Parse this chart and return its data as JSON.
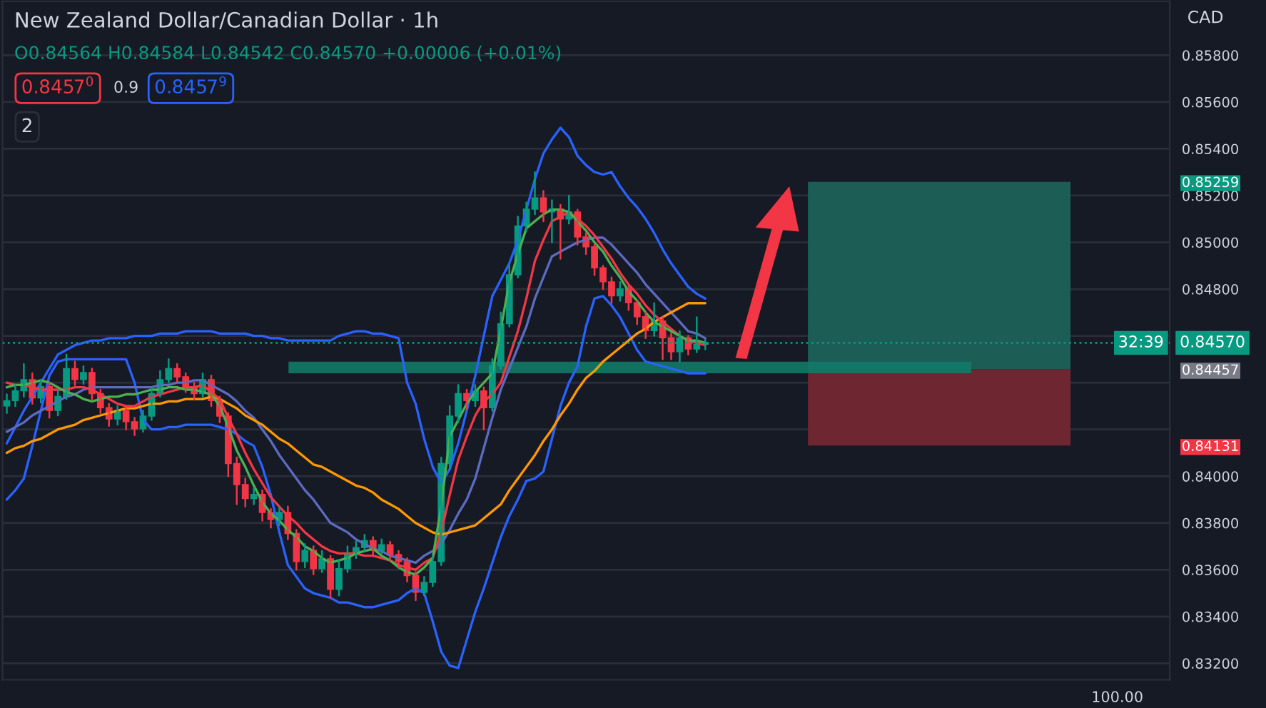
{
  "chart_data": {
    "type": "candlestick",
    "title": "New Zealand Dollar/Canadian Dollar · 1h",
    "subtitle": "O0.84564 H0.84584 L0.84542 C0.84570 +0.00006 (+0.01%)",
    "annotations": [
      "0.8457$^{0}$",
      "0.9",
      "0.8457$^{9}$",
      "2",
      "CAD",
      "32:39",
      "100.00"
    ],
    "categories": [
      null,
      null,
      null,
      null,
      null,
      null,
      null,
      null,
      null,
      null,
      null,
      null,
      null,
      null,
      null,
      null,
      null,
      null,
      null,
      null,
      null,
      null,
      null,
      null,
      null,
      null,
      null,
      null,
      null,
      null,
      null,
      null,
      null,
      null,
      null,
      null,
      null,
      null,
      null,
      null,
      null,
      null,
      null,
      null,
      null,
      null,
      null,
      null,
      null,
      null,
      null,
      null,
      null,
      null,
      null,
      null,
      null,
      null,
      null,
      null,
      null,
      null,
      null,
      null,
      null,
      null,
      null,
      null,
      null,
      null,
      null,
      null,
      null,
      null,
      null,
      null,
      null,
      null,
      null,
      null,
      null,
      null,
      null
    ],
    "ohlc": [
      [
        0.843,
        0.8435,
        0.8427,
        0.84323
      ],
      [
        0.84323,
        0.8439,
        0.843,
        0.84365
      ],
      [
        0.84365,
        0.8448,
        0.8434,
        0.84413
      ],
      [
        0.84413,
        0.8444,
        0.8431,
        0.84335
      ],
      [
        0.84335,
        0.8441,
        0.84315,
        0.84383
      ],
      [
        0.84383,
        0.844,
        0.8425,
        0.84281
      ],
      [
        0.84281,
        0.8437,
        0.8426,
        0.84341
      ],
      [
        0.84341,
        0.8452,
        0.8433,
        0.8446
      ],
      [
        0.8446,
        0.8449,
        0.8439,
        0.84413
      ],
      [
        0.84413,
        0.8447,
        0.84395,
        0.84443
      ],
      [
        0.84443,
        0.8446,
        0.8433,
        0.84353
      ],
      [
        0.84353,
        0.8437,
        0.8427,
        0.84293
      ],
      [
        0.84293,
        0.8431,
        0.84215,
        0.84245
      ],
      [
        0.84245,
        0.843,
        0.8422,
        0.84281
      ],
      [
        0.84281,
        0.84295,
        0.842,
        0.84233
      ],
      [
        0.84233,
        0.8425,
        0.84175,
        0.84203
      ],
      [
        0.84203,
        0.8428,
        0.8419,
        0.84257
      ],
      [
        0.84257,
        0.8438,
        0.8424,
        0.84353
      ],
      [
        0.84353,
        0.8445,
        0.8434,
        0.84413
      ],
      [
        0.84413,
        0.845,
        0.844,
        0.8446
      ],
      [
        0.8446,
        0.8448,
        0.84405,
        0.84425
      ],
      [
        0.84425,
        0.8444,
        0.8436,
        0.84383
      ],
      [
        0.84383,
        0.844,
        0.8433,
        0.84353
      ],
      [
        0.84353,
        0.8444,
        0.8434,
        0.84413
      ],
      [
        0.84413,
        0.8443,
        0.843,
        0.84323
      ],
      [
        0.84323,
        0.8434,
        0.8423,
        0.84257
      ],
      [
        0.84257,
        0.8427,
        0.84,
        0.84054
      ],
      [
        0.84054,
        0.8408,
        0.8388,
        0.83964
      ],
      [
        0.83964,
        0.8399,
        0.8387,
        0.83904
      ],
      [
        0.83904,
        0.8395,
        0.8388,
        0.83922
      ],
      [
        0.83922,
        0.8394,
        0.8381,
        0.83845
      ],
      [
        0.83845,
        0.8386,
        0.8378,
        0.83815
      ],
      [
        0.83815,
        0.8387,
        0.8379,
        0.83845
      ],
      [
        0.83845,
        0.8387,
        0.8373,
        0.83755
      ],
      [
        0.83755,
        0.8377,
        0.836,
        0.83635
      ],
      [
        0.83635,
        0.8371,
        0.8361,
        0.83683
      ],
      [
        0.83683,
        0.837,
        0.8358,
        0.83605
      ],
      [
        0.83605,
        0.8368,
        0.8359,
        0.83647
      ],
      [
        0.83647,
        0.8366,
        0.8348,
        0.83516
      ],
      [
        0.83516,
        0.8364,
        0.8349,
        0.83605
      ],
      [
        0.83605,
        0.837,
        0.8359,
        0.83665
      ],
      [
        0.83665,
        0.8372,
        0.8365,
        0.83695
      ],
      [
        0.83695,
        0.8375,
        0.8368,
        0.83725
      ],
      [
        0.83725,
        0.8374,
        0.8366,
        0.83683
      ],
      [
        0.83683,
        0.8373,
        0.8367,
        0.83707
      ],
      [
        0.83707,
        0.8372,
        0.8364,
        0.83665
      ],
      [
        0.83665,
        0.8368,
        0.8361,
        0.83635
      ],
      [
        0.83635,
        0.8365,
        0.8355,
        0.83575
      ],
      [
        0.83575,
        0.8359,
        0.8347,
        0.83504
      ],
      [
        0.83504,
        0.8357,
        0.8349,
        0.83546
      ],
      [
        0.83546,
        0.8366,
        0.8353,
        0.83635
      ],
      [
        0.83635,
        0.8408,
        0.8362,
        0.84054
      ],
      [
        0.84054,
        0.843,
        0.8403,
        0.84257
      ],
      [
        0.84257,
        0.8439,
        0.8423,
        0.84353
      ],
      [
        0.84353,
        0.8437,
        0.8429,
        0.84323
      ],
      [
        0.84323,
        0.8439,
        0.843,
        0.84365
      ],
      [
        0.84365,
        0.8438,
        0.842,
        0.84293
      ],
      [
        0.84293,
        0.845,
        0.8428,
        0.84472
      ],
      [
        0.84472,
        0.847,
        0.8446,
        0.84652
      ],
      [
        0.84652,
        0.849,
        0.8464,
        0.84861
      ],
      [
        0.84861,
        0.8511,
        0.8485,
        0.8507
      ],
      [
        0.8507,
        0.8517,
        0.8505,
        0.85142
      ],
      [
        0.85142,
        0.853,
        0.8512,
        0.8519
      ],
      [
        0.8519,
        0.8522,
        0.8509,
        0.8513
      ],
      [
        0.8513,
        0.8518,
        0.85,
        0.85142
      ],
      [
        0.85142,
        0.8516,
        0.8493,
        0.851
      ],
      [
        0.851,
        0.852,
        0.8508,
        0.8513
      ],
      [
        0.8513,
        0.8514,
        0.8499,
        0.85023
      ],
      [
        0.85023,
        0.8504,
        0.8495,
        0.84981
      ],
      [
        0.84981,
        0.8499,
        0.8486,
        0.84891
      ],
      [
        0.84891,
        0.849,
        0.848,
        0.84831
      ],
      [
        0.84831,
        0.8485,
        0.8474,
        0.84771
      ],
      [
        0.84771,
        0.8483,
        0.8475,
        0.84801
      ],
      [
        0.84801,
        0.8481,
        0.8471,
        0.84742
      ],
      [
        0.84742,
        0.8475,
        0.8465,
        0.84682
      ],
      [
        0.84682,
        0.847,
        0.8459,
        0.84622
      ],
      [
        0.84622,
        0.8474,
        0.846,
        0.84664
      ],
      [
        0.84664,
        0.8468,
        0.845,
        0.84592
      ],
      [
        0.84592,
        0.8461,
        0.845,
        0.84532
      ],
      [
        0.84532,
        0.8462,
        0.8449,
        0.84592
      ],
      [
        0.84592,
        0.846,
        0.8452,
        0.84544
      ],
      [
        0.84544,
        0.8468,
        0.8453,
        0.84564
      ],
      [
        0.84564,
        0.84584,
        0.84542,
        0.8457
      ]
    ],
    "colors": [
      "#089981",
      "#089981",
      "#089981",
      "#f23645",
      "#089981",
      "#f23645",
      "#089981",
      "#089981",
      "#f23645",
      "#089981",
      "#f23645",
      "#f23645",
      "#f23645",
      "#089981",
      "#f23645",
      "#f23645",
      "#089981",
      "#089981",
      "#089981",
      "#089981",
      "#f23645",
      "#f23645",
      "#f23645",
      "#089981",
      "#f23645",
      "#f23645",
      "#f23645",
      "#f23645",
      "#f23645",
      "#089981",
      "#f23645",
      "#f23645",
      "#089981",
      "#f23645",
      "#f23645",
      "#089981",
      "#f23645",
      "#089981",
      "#f23645",
      "#089981",
      "#089981",
      "#089981",
      "#089981",
      "#f23645",
      "#089981",
      "#f23645",
      "#f23645",
      "#f23645",
      "#f23645",
      "#089981",
      "#089981",
      "#089981",
      "#089981",
      "#089981",
      "#f23645",
      "#089981",
      "#f23645",
      "#089981",
      "#089981",
      "#089981",
      "#089981",
      "#089981",
      "#089981",
      "#f23645",
      "#089981",
      "#f23645",
      "#089981",
      "#f23645",
      "#f23645",
      "#f23645",
      "#f23645",
      "#f23645",
      "#089981",
      "#f23645",
      "#f23645",
      "#f23645",
      "#089981",
      "#f23645",
      "#f23645",
      "#089981",
      "#f23645",
      "#089981",
      "#089981"
    ],
    "series": [
      {
        "type": "line",
        "color": "#2962ff",
        "values": [
          0.8414,
          0.8421,
          0.8428,
          0.8434,
          0.844,
          0.8446,
          0.8452,
          0.8454,
          0.8456,
          0.8457,
          0.8458,
          0.8458,
          0.8459,
          0.8459,
          0.8459,
          0.846,
          0.846,
          0.846,
          0.8461,
          0.8461,
          0.8461,
          0.8462,
          0.8462,
          0.8462,
          0.8462,
          0.8461,
          0.8461,
          0.8461,
          0.8461,
          0.846,
          0.846,
          0.8459,
          0.8459,
          0.8458,
          0.8458,
          0.8458,
          0.8458,
          0.8458,
          0.8458,
          0.846,
          0.8461,
          0.8462,
          0.8462,
          0.8461,
          0.8461,
          0.846,
          0.8459,
          0.844,
          0.8431,
          0.8416,
          0.8404,
          0.8397,
          0.8403,
          0.8414,
          0.8428,
          0.8443,
          0.846,
          0.8477,
          0.8484,
          0.8491,
          0.8501,
          0.8514,
          0.8527,
          0.8538,
          0.8544,
          0.8549,
          0.8545,
          0.8537,
          0.8533,
          0.853,
          0.8529,
          0.853,
          0.8524,
          0.8519,
          0.8515,
          0.851,
          0.8504,
          0.8497,
          0.8491,
          0.8486,
          0.8481,
          0.8478,
          0.8476
        ]
      },
      {
        "type": "line",
        "color": "#2962ff",
        "values": [
          0.839,
          0.8394,
          0.8399,
          0.8413,
          0.8428,
          0.8443,
          0.8449,
          0.845,
          0.845,
          0.845,
          0.845,
          0.845,
          0.845,
          0.845,
          0.845,
          0.844,
          0.8424,
          0.842,
          0.842,
          0.8421,
          0.8421,
          0.8422,
          0.8422,
          0.8422,
          0.8422,
          0.8421,
          0.842,
          0.8418,
          0.8415,
          0.8413,
          0.8404,
          0.8392,
          0.8376,
          0.8362,
          0.8357,
          0.8352,
          0.835,
          0.8349,
          0.8348,
          0.8346,
          0.8346,
          0.8345,
          0.8344,
          0.8344,
          0.8345,
          0.8346,
          0.8347,
          0.835,
          0.8352,
          0.835,
          0.8338,
          0.8325,
          0.8319,
          0.8318,
          0.833,
          0.8342,
          0.8352,
          0.8363,
          0.8374,
          0.8383,
          0.839,
          0.8398,
          0.8399,
          0.8402,
          0.8416,
          0.843,
          0.844,
          0.8447,
          0.8464,
          0.8476,
          0.8477,
          0.8473,
          0.8468,
          0.8461,
          0.8454,
          0.8449,
          0.8448,
          0.8447,
          0.8446,
          0.8445,
          0.8444,
          0.8444,
          0.8444
        ]
      },
      {
        "type": "line",
        "color": "#5c6bc0",
        "values": [
          0.8419,
          0.8421,
          0.8423,
          0.8426,
          0.8428,
          0.843,
          0.8432,
          0.8434,
          0.8435,
          0.8437,
          0.8438,
          0.8438,
          0.8438,
          0.8438,
          0.8438,
          0.8438,
          0.8438,
          0.8438,
          0.8439,
          0.8439,
          0.844,
          0.844,
          0.8441,
          0.8441,
          0.8439,
          0.8437,
          0.8435,
          0.8432,
          0.8428,
          0.8425,
          0.842,
          0.8415,
          0.8409,
          0.8404,
          0.8399,
          0.8394,
          0.839,
          0.8385,
          0.838,
          0.8378,
          0.8376,
          0.8373,
          0.8371,
          0.8369,
          0.8368,
          0.8366,
          0.8365,
          0.8364,
          0.8363,
          0.8366,
          0.8368,
          0.8371,
          0.8377,
          0.8384,
          0.839,
          0.8399,
          0.8412,
          0.8425,
          0.8437,
          0.8446,
          0.8455,
          0.8464,
          0.8476,
          0.8485,
          0.8494,
          0.8496,
          0.8498,
          0.85,
          0.8501,
          0.8502,
          0.8502,
          0.8499,
          0.8495,
          0.8491,
          0.8487,
          0.8482,
          0.8478,
          0.8474,
          0.847,
          0.8466,
          0.8462,
          0.8461,
          0.8459
        ]
      },
      {
        "type": "line",
        "color": "#ff9800",
        "values": [
          0.841,
          0.8412,
          0.8413,
          0.8415,
          0.8416,
          0.8418,
          0.842,
          0.8421,
          0.8422,
          0.8424,
          0.8425,
          0.8426,
          0.8427,
          0.8428,
          0.8429,
          0.8429,
          0.843,
          0.8431,
          0.8431,
          0.8432,
          0.8432,
          0.8433,
          0.8433,
          0.8433,
          0.8434,
          0.8433,
          0.8431,
          0.8429,
          0.8426,
          0.8424,
          0.8422,
          0.8419,
          0.8416,
          0.8414,
          0.8411,
          0.8408,
          0.8405,
          0.8404,
          0.8402,
          0.84,
          0.8398,
          0.8396,
          0.8395,
          0.8393,
          0.839,
          0.8388,
          0.8386,
          0.8383,
          0.838,
          0.8378,
          0.8376,
          0.8375,
          0.8376,
          0.8377,
          0.8378,
          0.8379,
          0.8382,
          0.8385,
          0.8388,
          0.8394,
          0.8399,
          0.8404,
          0.8409,
          0.8415,
          0.842,
          0.8426,
          0.8431,
          0.8437,
          0.8442,
          0.8445,
          0.8449,
          0.8452,
          0.8455,
          0.8458,
          0.8461,
          0.8463,
          0.8466,
          0.8468,
          0.847,
          0.8472,
          0.8474,
          0.8474,
          0.8474
        ]
      },
      {
        "type": "line",
        "color": "#f23645",
        "values": [
          0.844,
          0.8439,
          0.8439,
          0.8438,
          0.8437,
          0.8437,
          0.8437,
          0.8437,
          0.8438,
          0.8438,
          0.8437,
          0.8435,
          0.8433,
          0.8431,
          0.843,
          0.843,
          0.8432,
          0.8434,
          0.8435,
          0.8436,
          0.8437,
          0.8438,
          0.8438,
          0.8439,
          0.8436,
          0.8433,
          0.8425,
          0.8418,
          0.841,
          0.8403,
          0.8397,
          0.8391,
          0.8387,
          0.8383,
          0.838,
          0.8376,
          0.8373,
          0.837,
          0.8368,
          0.8367,
          0.8367,
          0.8367,
          0.8366,
          0.8366,
          0.8365,
          0.8364,
          0.8362,
          0.8361,
          0.836,
          0.8363,
          0.8365,
          0.8376,
          0.8392,
          0.8407,
          0.8417,
          0.8426,
          0.8432,
          0.8435,
          0.844,
          0.8451,
          0.8462,
          0.8476,
          0.8492,
          0.8501,
          0.8509,
          0.8511,
          0.8513,
          0.851,
          0.8507,
          0.8503,
          0.8498,
          0.8493,
          0.8487,
          0.8482,
          0.8478,
          0.8473,
          0.8469,
          0.8466,
          0.8463,
          0.846,
          0.8458,
          0.8457,
          0.8456
        ]
      },
      {
        "type": "line",
        "color": "#4caf50",
        "values": [
          0.8438,
          0.8439,
          0.8439,
          0.844,
          0.8441,
          0.844,
          0.8438,
          0.8436,
          0.8435,
          0.8433,
          0.8432,
          0.8433,
          0.8434,
          0.8434,
          0.8435,
          0.8435,
          0.8436,
          0.8437,
          0.8437,
          0.8438,
          0.8438,
          0.8437,
          0.8437,
          0.8436,
          0.8435,
          0.843,
          0.8421,
          0.8411,
          0.8404,
          0.8396,
          0.8389,
          0.8384,
          0.8381,
          0.8377,
          0.8374,
          0.837,
          0.8368,
          0.8365,
          0.8363,
          0.8364,
          0.8365,
          0.8367,
          0.8368,
          0.8369,
          0.8366,
          0.8364,
          0.8361,
          0.8359,
          0.8358,
          0.8361,
          0.8365,
          0.8387,
          0.8417,
          0.8424,
          0.8431,
          0.8436,
          0.844,
          0.8444,
          0.8463,
          0.8483,
          0.8495,
          0.8506,
          0.8509,
          0.8512,
          0.8514,
          0.8514,
          0.8513,
          0.8509,
          0.8505,
          0.85,
          0.8496,
          0.849,
          0.8485,
          0.8479,
          0.8475,
          0.847,
          0.8466,
          0.8464,
          0.8462,
          0.846,
          0.8458,
          0.8458,
          0.8457
        ]
      }
    ],
    "bands": [
      {
        "axis": "y",
        "from": 0.8444,
        "to": 0.8449,
        "color": "#127a68"
      }
    ],
    "ref_lines": [
      {
        "axis": "y",
        "value": 0.8457,
        "label": "0.84570",
        "color": "#089981",
        "line_style": "dotted"
      }
    ],
    "ylim": [
      0.8313,
      0.8603
    ],
    "yticks": [
      {
        "value": 0.832,
        "label": "0.83200"
      },
      {
        "value": 0.834,
        "label": "0.83400"
      },
      {
        "value": 0.836,
        "label": "0.83600"
      },
      {
        "value": 0.838,
        "label": "0.83800"
      },
      {
        "value": 0.84,
        "label": "0.84000"
      },
      {
        "value": 0.84131,
        "label": "0.84131"
      },
      {
        "value": 0.842,
        "label": null
      },
      {
        "value": 0.844,
        "label": null
      },
      {
        "value": 0.84457,
        "label": "0.84457"
      },
      {
        "value": 0.846,
        "label": null
      },
      {
        "value": 0.848,
        "label": "0.84800"
      },
      {
        "value": 0.85,
        "label": "0.85000"
      },
      {
        "value": 0.852,
        "label": "0.85200"
      },
      {
        "value": 0.85259,
        "label": "0.85259"
      },
      {
        "value": 0.854,
        "label": "0.85400"
      },
      {
        "value": 0.856,
        "label": "0.85600"
      },
      {
        "value": 0.858,
        "label": "0.85800"
      }
    ],
    "tick_labels": "y",
    "grid": "y"
  }
}
